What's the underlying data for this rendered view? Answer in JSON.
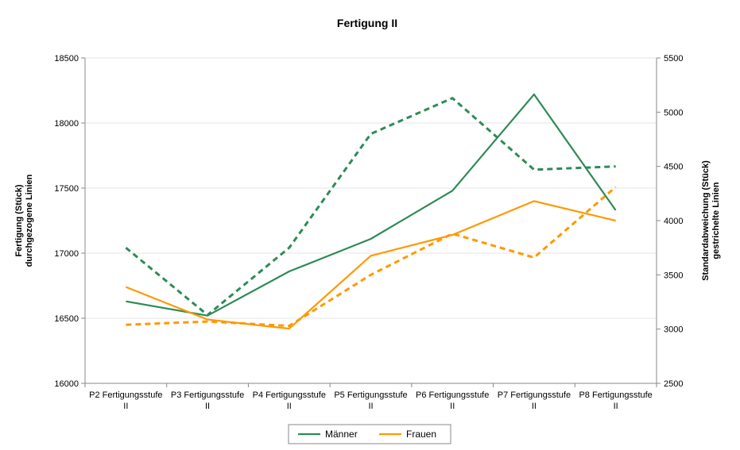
{
  "chart_data": {
    "type": "line",
    "title": "Fertigung II",
    "categories": [
      [
        "P2 Fertigungsstufe",
        "II"
      ],
      [
        "P3 Fertigungsstufe",
        "II"
      ],
      [
        "P4 Fertigungsstufe",
        "II"
      ],
      [
        "P5 Fertigungsstufe",
        "II"
      ],
      [
        "P6 Fertigungsstufe",
        "II"
      ],
      [
        "P7 Fertigungsstufe",
        "II"
      ],
      [
        "P8 Fertigungsstufe",
        "II"
      ]
    ],
    "y_left": {
      "label_lines": [
        "Fertigung (Stück)",
        "durchgezogene Linien"
      ],
      "ylim": [
        16000,
        18500
      ],
      "ticks": [
        "16000",
        "16500",
        "17000",
        "17500",
        "18000",
        "18500"
      ]
    },
    "y_right": {
      "label_lines": [
        "Standardabweichung (Stück)",
        "gestrichelte Linien"
      ],
      "ylim": [
        2500,
        5500
      ],
      "ticks": [
        "2500",
        "3000",
        "3500",
        "4000",
        "4500",
        "5000",
        "5500"
      ]
    },
    "grid": true,
    "legend_position": "bottom",
    "series": [
      {
        "name": "Männer",
        "axis": "left",
        "style": "solid",
        "color": "#2e8b57",
        "values": [
          16630,
          16520,
          16860,
          17110,
          17480,
          18220,
          17330
        ]
      },
      {
        "name": "Frauen",
        "axis": "left",
        "style": "solid",
        "color": "#ff9900",
        "values": [
          16740,
          16490,
          16420,
          16980,
          17140,
          17400,
          17250
        ]
      },
      {
        "name": "",
        "axis": "right",
        "style": "dashed",
        "color": "#2e8b57",
        "values": [
          3750,
          3130,
          3750,
          4800,
          5130,
          4470,
          4500
        ]
      },
      {
        "name": "",
        "axis": "right",
        "style": "dashed",
        "color": "#ff9900",
        "values": [
          3040,
          3070,
          3030,
          3500,
          3880,
          3660,
          4310
        ]
      }
    ],
    "legend": [
      {
        "name": "Männer",
        "color": "#2e8b57"
      },
      {
        "name": "Frauen",
        "color": "#ff9900"
      }
    ]
  }
}
